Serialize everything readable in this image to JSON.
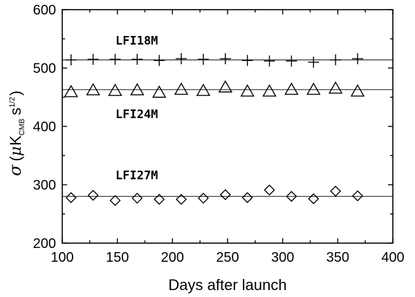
{
  "chart_data": {
    "type": "scatter",
    "xlabel": "Days after launch",
    "ylabel": {
      "symbol": "σ",
      "open": "(",
      "mu": "μ",
      "K": "K",
      "sub": "CMB",
      "s": "s",
      "sup": "1/2",
      "close": ")"
    },
    "xlim": [
      100,
      400
    ],
    "ylim": [
      200,
      600
    ],
    "xticks": [
      100,
      150,
      200,
      250,
      300,
      350,
      400
    ],
    "yticks": [
      200,
      300,
      400,
      500,
      600
    ],
    "grid": false,
    "series": [
      {
        "name": "LFI18M",
        "marker": "plus",
        "fit": 514,
        "x": [
          108,
          128,
          148,
          168,
          188,
          208,
          228,
          248,
          268,
          288,
          308,
          328,
          348,
          368
        ],
        "y": [
          514,
          515,
          515,
          515,
          513,
          516,
          515,
          516,
          513,
          512,
          512,
          510,
          514,
          516
        ]
      },
      {
        "name": "LFI24M",
        "marker": "triangle",
        "fit": 463,
        "x": [
          108,
          128,
          148,
          168,
          188,
          208,
          228,
          248,
          268,
          288,
          308,
          328,
          348,
          368
        ],
        "y": [
          459,
          462,
          461,
          462,
          458,
          463,
          461,
          467,
          460,
          460,
          463,
          463,
          465,
          460
        ]
      },
      {
        "name": "LFI27M",
        "marker": "diamond",
        "fit": 280,
        "x": [
          108,
          128,
          148,
          168,
          188,
          208,
          228,
          248,
          268,
          288,
          308,
          328,
          348,
          368
        ],
        "y": [
          278,
          282,
          273,
          277,
          275,
          275,
          277,
          283,
          278,
          291,
          280,
          276,
          289,
          281
        ]
      }
    ]
  }
}
